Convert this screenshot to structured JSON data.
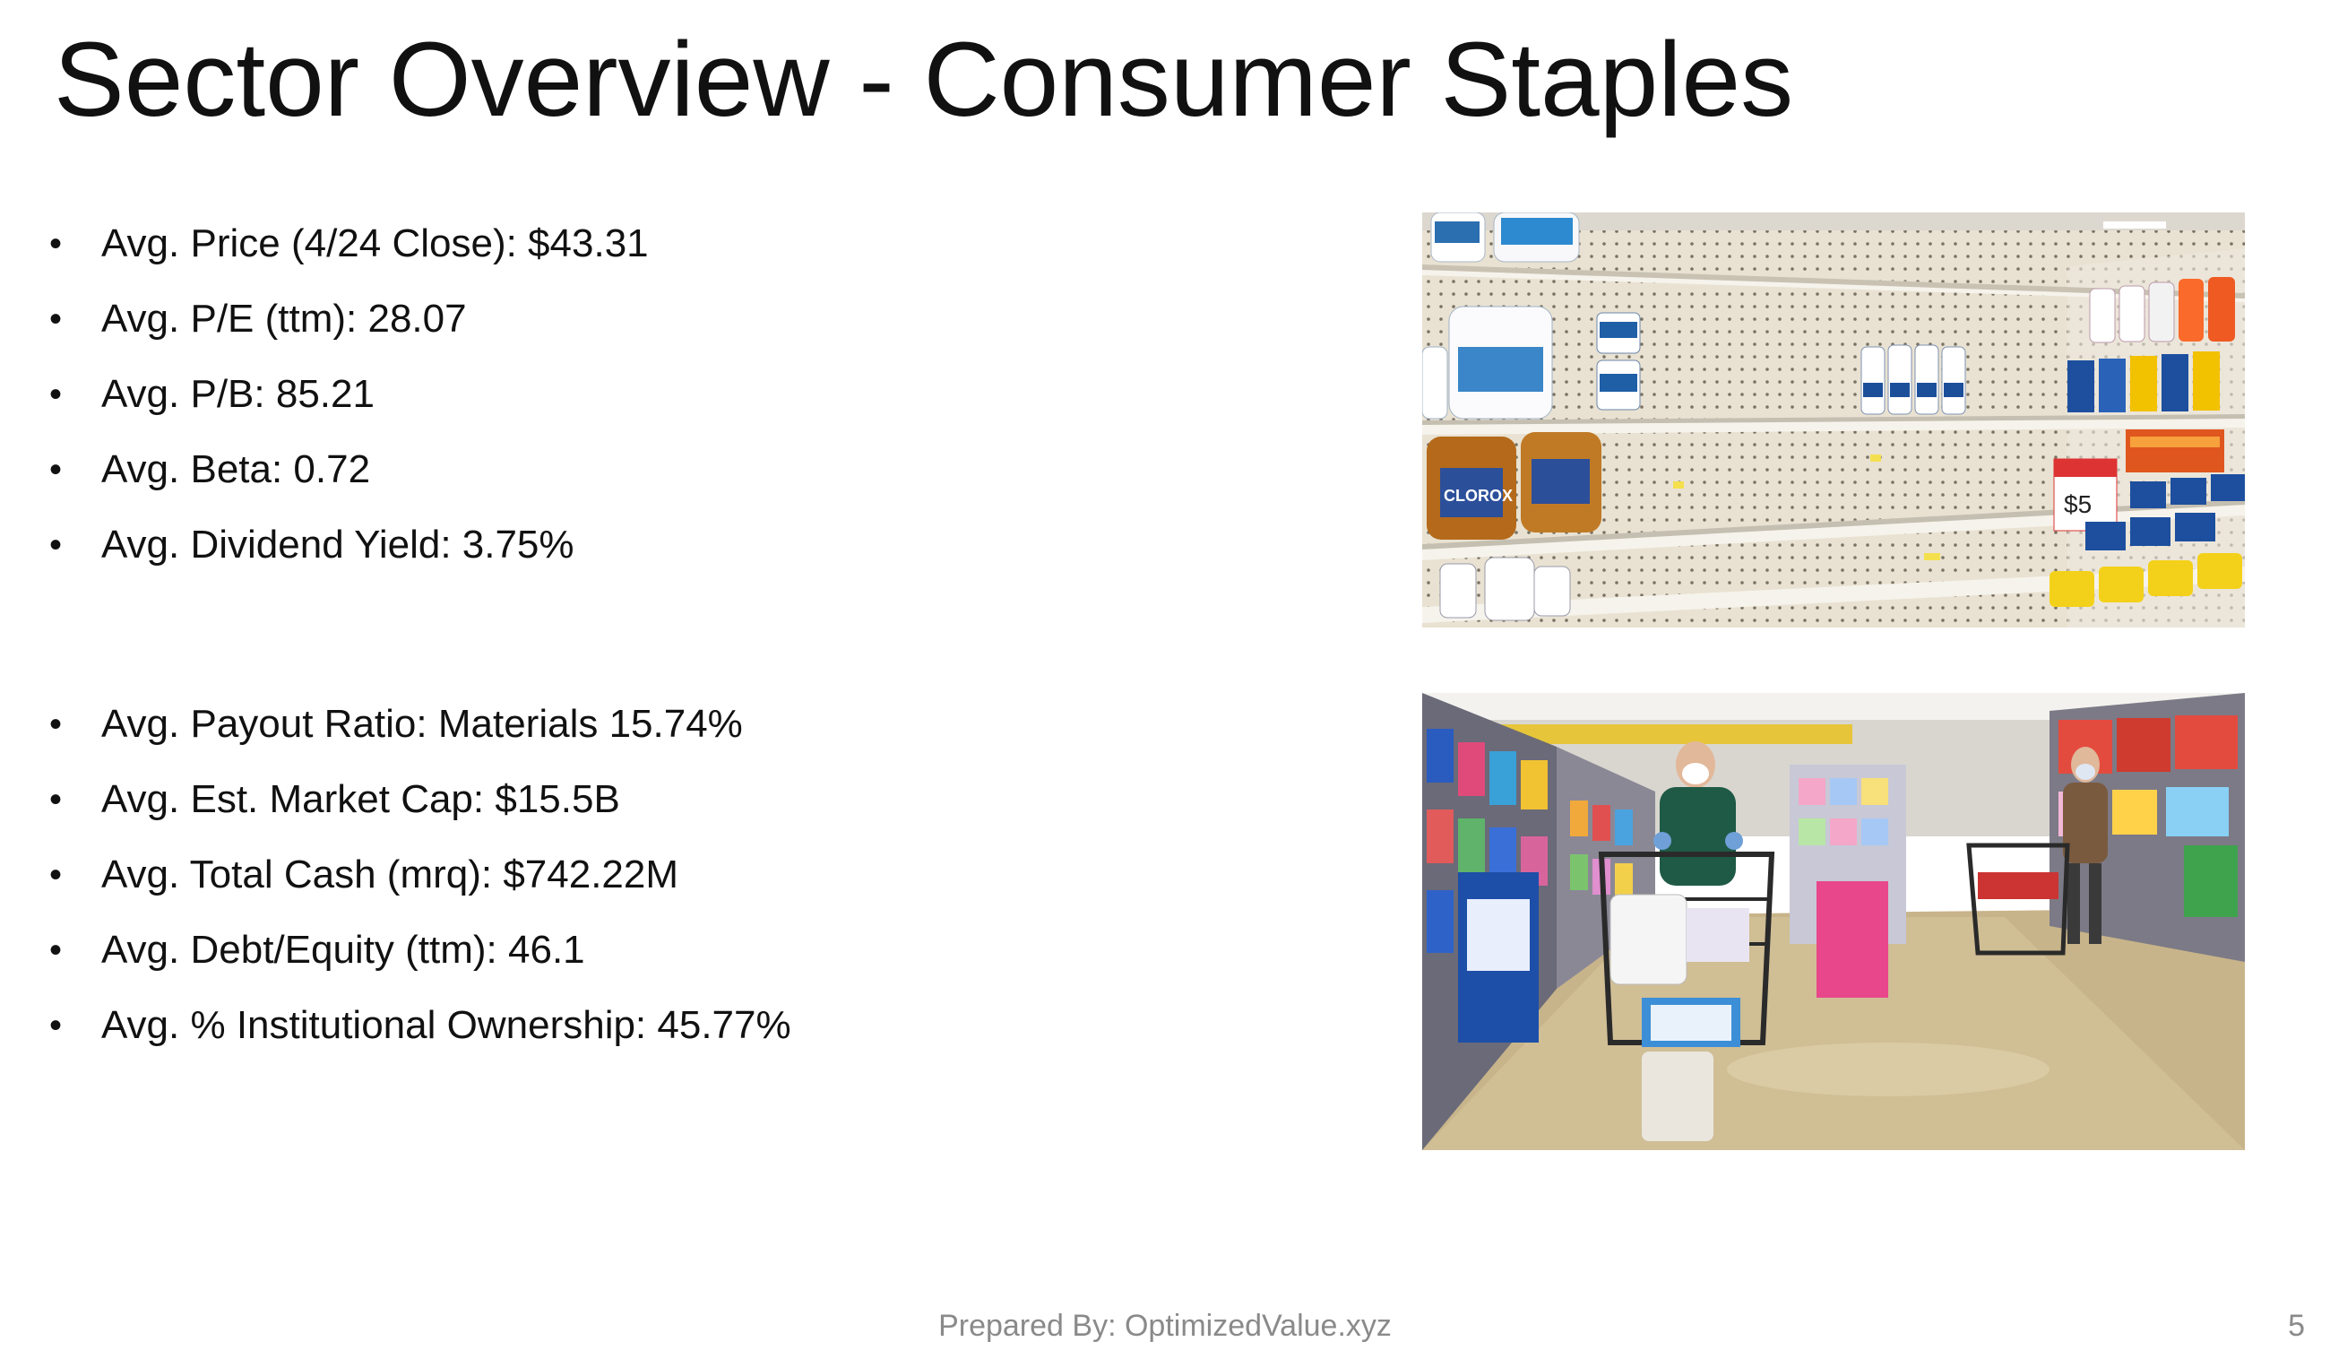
{
  "slide": {
    "title": "Sector Overview - Consumer Staples",
    "bullet_char": "•",
    "group1": [
      "Avg. Price (4/24 Close): $43.31",
      "Avg. P/E (ttm): 28.07",
      "Avg. P/B: 85.21",
      "Avg. Beta: 0.72",
      "Avg. Dividend Yield: 3.75%"
    ],
    "group2": [
      "Avg. Payout Ratio: Materials 15.74%",
      "Avg. Est. Market Cap: $15.5B",
      "Avg. Total Cash (mrq): $742.22M",
      "Avg. Debt/Equity (ttm): 46.1",
      "Avg. % Institutional Ownership: 45.77%"
    ],
    "footer": "Prepared By: OptimizedValue.xyz",
    "page_number": "5"
  },
  "images": {
    "photo1_logo_text": "CLOROX",
    "photo1_sign_text": "$5"
  },
  "colors": {
    "title": "#111111",
    "footer": "#8a8a8a",
    "shelf": "#efe9dc",
    "floor": "#c8b48a"
  }
}
